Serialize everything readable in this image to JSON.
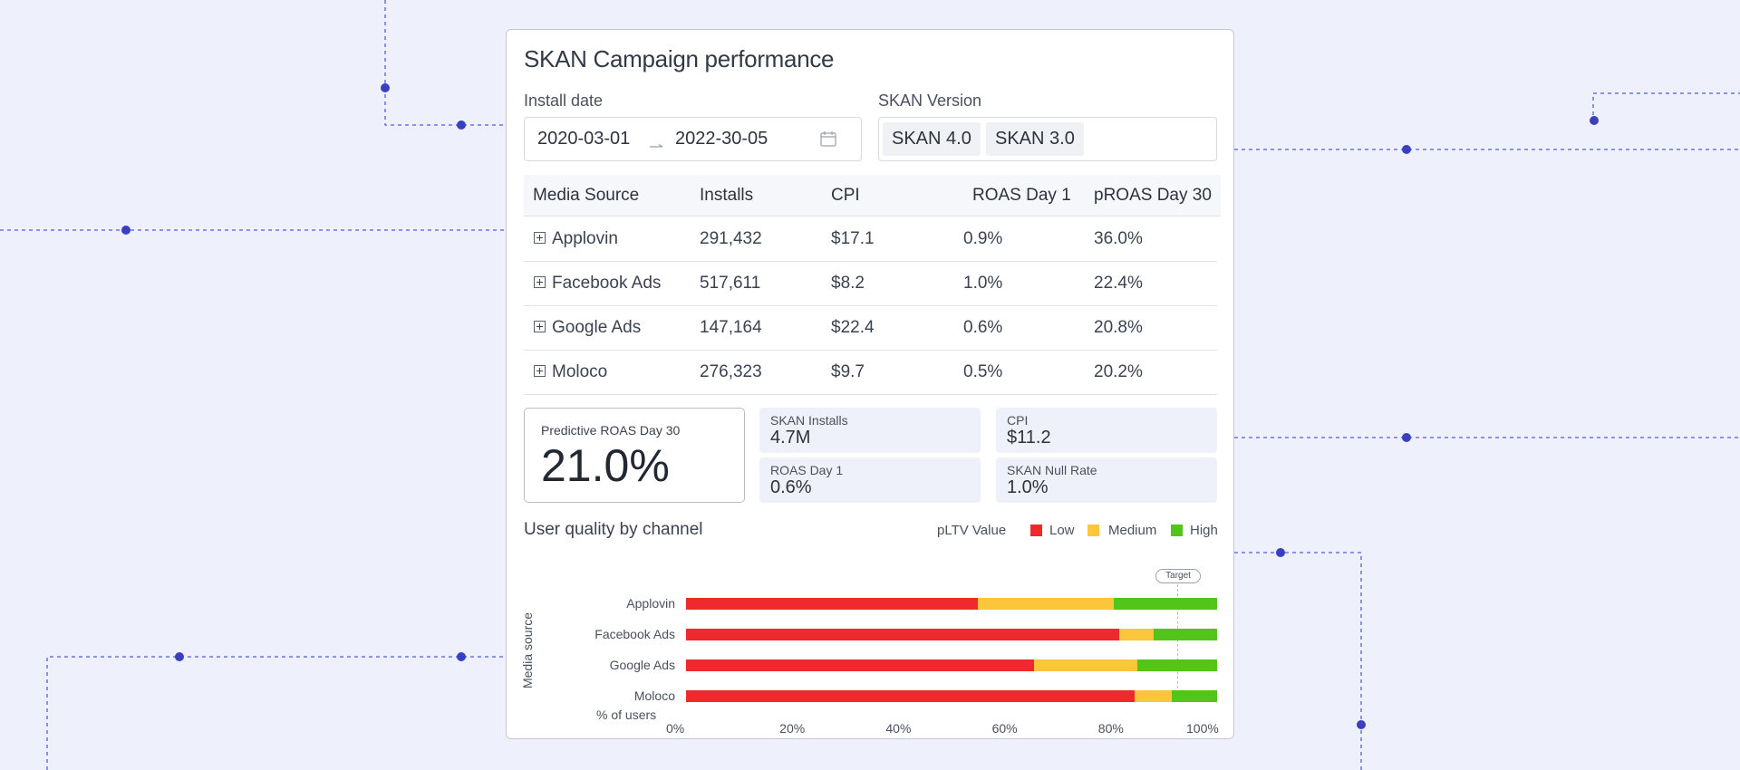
{
  "title": "SKAN Campaign performance",
  "filters": {
    "install_date_label": "Install date",
    "start_date": "2020-03-01",
    "end_date": "2022-30-05",
    "arrow_icon": "arrow-right-icon",
    "calendar_icon": "calendar-icon",
    "skan_version_label": "SKAN Version",
    "skan_versions": [
      "SKAN 4.0",
      "SKAN 3.0"
    ]
  },
  "table": {
    "columns": [
      "Media Source",
      "Installs",
      "CPI",
      "ROAS Day 1",
      "pROAS Day 30"
    ],
    "rows": [
      {
        "source": "Applovin",
        "installs": "291,432",
        "cpi": "$17.1",
        "roas_d1": "0.9%",
        "proas_d30": "36.0%"
      },
      {
        "source": "Facebook Ads",
        "installs": "517,611",
        "cpi": "$8.2",
        "roas_d1": "1.0%",
        "proas_d30": "22.4%"
      },
      {
        "source": "Google Ads",
        "installs": "147,164",
        "cpi": "$22.4",
        "roas_d1": "0.6%",
        "proas_d30": "20.8%"
      },
      {
        "source": "Moloco",
        "installs": "276,323",
        "cpi": "$9.7",
        "roas_d1": "0.5%",
        "proas_d30": "20.2%"
      }
    ]
  },
  "kpis": {
    "predictive_roas": {
      "label": "Predictive ROAS Day 30",
      "value": "21.0%"
    },
    "skan_installs": {
      "label": "SKAN Installs",
      "value": "4.7M"
    },
    "cpi": {
      "label": "CPI",
      "value": "$11.2"
    },
    "roas_day1": {
      "label": "ROAS Day 1",
      "value": "0.6%"
    },
    "null_rate": {
      "label": "SKAN Null Rate",
      "value": "1.0%"
    }
  },
  "colors": {
    "low": "#ee2a2e",
    "medium": "#fbc53c",
    "high": "#52c41a",
    "accent": "#3a3fbf",
    "dash": "#6b74e0"
  },
  "chart_data": {
    "type": "bar",
    "orientation": "horizontal",
    "stacked": true,
    "title": "User quality by channel",
    "legend_title": "pLTV Value",
    "legend_position": "top-right",
    "categories": [
      "Applovin",
      "Facebook Ads",
      "Google Ads",
      "Moloco"
    ],
    "series": [
      {
        "name": "Low",
        "color": "#ee2a2e",
        "values": [
          55,
          81.5,
          65.5,
          84.5
        ]
      },
      {
        "name": "Medium",
        "color": "#fbc53c",
        "values": [
          25.5,
          6.5,
          19.5,
          7
        ]
      },
      {
        "name": "High",
        "color": "#52c41a",
        "values": [
          19.5,
          12,
          15,
          8.5
        ]
      }
    ],
    "xlabel": "% of users",
    "ylabel": "Media source",
    "xticks": [
      "0%",
      "20%",
      "40%",
      "60%",
      "80%",
      "100%"
    ],
    "xlim": [
      0,
      100
    ],
    "target": {
      "label": "Target",
      "value": 92.5
    },
    "grid": false
  }
}
